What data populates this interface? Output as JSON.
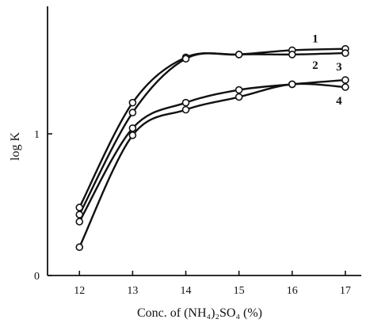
{
  "chart_data": {
    "type": "line",
    "xlabel": "Conc. of (NH₄)₂SO₄ (%)",
    "ylabel": "log K",
    "xticks": [
      12,
      13,
      14,
      15,
      16,
      17
    ],
    "yticks": [
      0,
      1
    ],
    "ytick_labels": [
      "0",
      "1"
    ],
    "xlim": [
      11.4,
      17.3
    ],
    "ylim": [
      0,
      1.9
    ],
    "grid": false,
    "series": [
      {
        "name": "1",
        "x": [
          12,
          13,
          14,
          15,
          16,
          17
        ],
        "y": [
          0.48,
          1.22,
          1.54,
          1.56,
          1.59,
          1.6
        ]
      },
      {
        "name": "2",
        "x": [
          12,
          13,
          14,
          15,
          16,
          17
        ],
        "y": [
          0.43,
          1.15,
          1.53,
          1.56,
          1.56,
          1.57
        ]
      },
      {
        "name": "3",
        "x": [
          12,
          13,
          14,
          15,
          16,
          17
        ],
        "y": [
          0.38,
          1.04,
          1.22,
          1.31,
          1.35,
          1.38
        ]
      },
      {
        "name": "4",
        "x": [
          12,
          13,
          14,
          15,
          16,
          17
        ],
        "y": [
          0.2,
          0.99,
          1.17,
          1.26,
          1.35,
          1.33
        ]
      }
    ]
  }
}
